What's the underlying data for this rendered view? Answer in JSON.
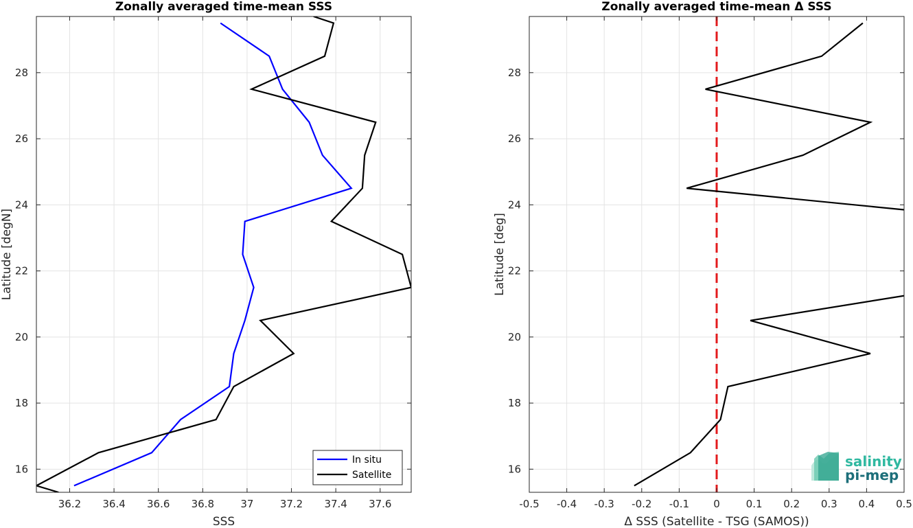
{
  "chart_data": [
    {
      "type": "line",
      "title": "Zonally averaged time-mean SSS",
      "xlabel": "SSS",
      "ylabel": "Latitude [degN]",
      "xlim": [
        36.05,
        37.74
      ],
      "ylim": [
        15.3,
        29.7
      ],
      "xticks": [
        36.2,
        36.4,
        36.6,
        36.8,
        37,
        37.2,
        37.4,
        37.6
      ],
      "xtick_labels": [
        "36.2",
        "36.4",
        "36.6",
        "36.8",
        "37",
        "37.2",
        "37.4",
        "37.6"
      ],
      "yticks": [
        16,
        18,
        20,
        22,
        24,
        26,
        28
      ],
      "ytick_labels": [
        "16",
        "18",
        "20",
        "22",
        "24",
        "26",
        "28"
      ],
      "grid": true,
      "legend": "bottom-right",
      "series": [
        {
          "name": "In situ",
          "color": "#0000ff",
          "points": [
            [
              36.22,
              15.5
            ],
            [
              36.57,
              16.5
            ],
            [
              36.7,
              17.5
            ],
            [
              36.92,
              18.5
            ],
            [
              36.94,
              19.5
            ],
            [
              36.99,
              20.5
            ],
            [
              37.03,
              21.5
            ],
            [
              36.98,
              22.5
            ],
            [
              36.99,
              23.5
            ],
            [
              37.47,
              24.5
            ],
            [
              37.34,
              25.5
            ],
            [
              37.28,
              26.5
            ],
            [
              37.16,
              27.5
            ],
            [
              37.1,
              28.5
            ],
            [
              36.88,
              29.5
            ]
          ]
        },
        {
          "name": "Satellite",
          "color": "#000000",
          "points": [
            [
              36.15,
              15.3
            ],
            [
              36.05,
              15.5
            ],
            [
              36.33,
              16.5
            ],
            [
              36.86,
              17.5
            ],
            [
              36.94,
              18.5
            ],
            [
              37.21,
              19.5
            ],
            [
              37.06,
              20.5
            ],
            [
              37.74,
              21.5
            ],
            [
              37.7,
              22.5
            ],
            [
              37.38,
              23.5
            ],
            [
              37.52,
              24.5
            ],
            [
              37.53,
              25.5
            ],
            [
              37.58,
              26.5
            ],
            [
              37.02,
              27.5
            ],
            [
              37.35,
              28.5
            ],
            [
              37.39,
              29.5
            ],
            [
              37.3,
              29.7
            ]
          ]
        }
      ]
    },
    {
      "type": "line",
      "title": "Zonally averaged time-mean Δ SSS",
      "xlabel": "Δ SSS (Satellite - TSG (SAMOS))",
      "ylabel": "Latitude [deg]",
      "xlim": [
        -0.5,
        0.5
      ],
      "ylim": [
        15.3,
        29.7
      ],
      "xticks": [
        -0.5,
        -0.4,
        -0.3,
        -0.2,
        -0.1,
        0,
        0.1,
        0.2,
        0.3,
        0.4,
        0.5
      ],
      "xtick_labels": [
        "-0.5",
        "-0.4",
        "-0.3",
        "-0.2",
        "-0.1",
        "0",
        "0.1",
        "0.2",
        "0.3",
        "0.4",
        "0.5"
      ],
      "yticks": [
        16,
        18,
        20,
        22,
        24,
        26,
        28
      ],
      "ytick_labels": [
        "16",
        "18",
        "20",
        "22",
        "24",
        "26",
        "28"
      ],
      "grid": true,
      "reference_line": {
        "x": 0,
        "color": "#e31a1c",
        "style": "dashed"
      },
      "series": [
        {
          "color": "#000000",
          "points": [
            [
              -0.22,
              15.5
            ],
            [
              -0.07,
              16.5
            ],
            [
              0.01,
              17.5
            ],
            [
              0.03,
              18.5
            ],
            [
              0.41,
              19.5
            ],
            [
              0.09,
              20.5
            ],
            [
              0.5,
              21.25
            ]
          ]
        },
        {
          "color": "#000000",
          "points": [
            [
              0.5,
              23.85
            ],
            [
              -0.08,
              24.5
            ],
            [
              0.23,
              25.5
            ],
            [
              0.41,
              26.5
            ],
            [
              -0.03,
              27.5
            ],
            [
              0.28,
              28.5
            ],
            [
              0.39,
              29.5
            ]
          ]
        }
      ]
    }
  ],
  "logo": {
    "line1": "salinity",
    "line2": "pi-mep",
    "color1": "#2fb8a0",
    "color2": "#1d6f7a"
  }
}
